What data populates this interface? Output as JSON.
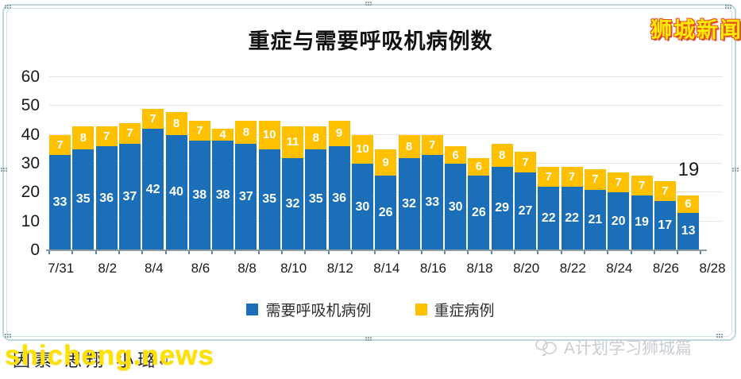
{
  "watermarks": {
    "brand_top_right": "狮城新闻",
    "site": "shicheng.news",
    "bottom_right_account": "A计划学习狮城篇"
  },
  "document": {
    "caption": "因素 思翔 小璐",
    "return_mark": "↵"
  },
  "chart_data": {
    "type": "bar",
    "stacked": true,
    "title": "重症与需要呼吸机病例数",
    "categories": [
      "7/31",
      "8/1",
      "8/2",
      "8/3",
      "8/4",
      "8/5",
      "8/6",
      "8/7",
      "8/8",
      "8/9",
      "8/10",
      "8/11",
      "8/12",
      "8/13",
      "8/14",
      "8/15",
      "8/16",
      "8/17",
      "8/18",
      "8/19",
      "8/20",
      "8/21",
      "8/22",
      "8/23",
      "8/24",
      "8/25",
      "8/26",
      "8/27"
    ],
    "x_tick_labels": [
      "7/31",
      "8/2",
      "8/4",
      "8/6",
      "8/8",
      "8/10",
      "8/12",
      "8/14",
      "8/16",
      "8/18",
      "8/20",
      "8/22",
      "8/24",
      "8/26",
      "8/28"
    ],
    "series": [
      {
        "name": "需要呼吸机病例",
        "color": "#1B6EB8",
        "values": [
          33,
          35,
          36,
          37,
          42,
          40,
          38,
          38,
          37,
          35,
          32,
          35,
          36,
          30,
          26,
          32,
          33,
          30,
          26,
          29,
          27,
          22,
          22,
          21,
          20,
          19,
          17,
          13
        ]
      },
      {
        "name": "重症病例",
        "color": "#FFC000",
        "values": [
          7,
          8,
          7,
          7,
          7,
          8,
          7,
          4,
          8,
          10,
          11,
          8,
          9,
          10,
          9,
          8,
          7,
          6,
          6,
          8,
          7,
          7,
          7,
          7,
          7,
          7,
          7,
          6
        ]
      }
    ],
    "ylim": [
      0,
      60
    ],
    "yticks": [
      0,
      10,
      20,
      30,
      40,
      50,
      60
    ],
    "grid": true,
    "legend_position": "bottom",
    "annotation_label": "19",
    "bar_label_color": "#FFFFFF"
  },
  "colors": {
    "bar_blue": "#1B6EB8",
    "bar_yellow": "#FFC000",
    "selection_frame": "#BCD7DE",
    "brand_fill": "#FFEE00",
    "brand_outline": "#F04A22",
    "site_watermark": "#FFE200",
    "account_watermark": "#C9CED3"
  }
}
